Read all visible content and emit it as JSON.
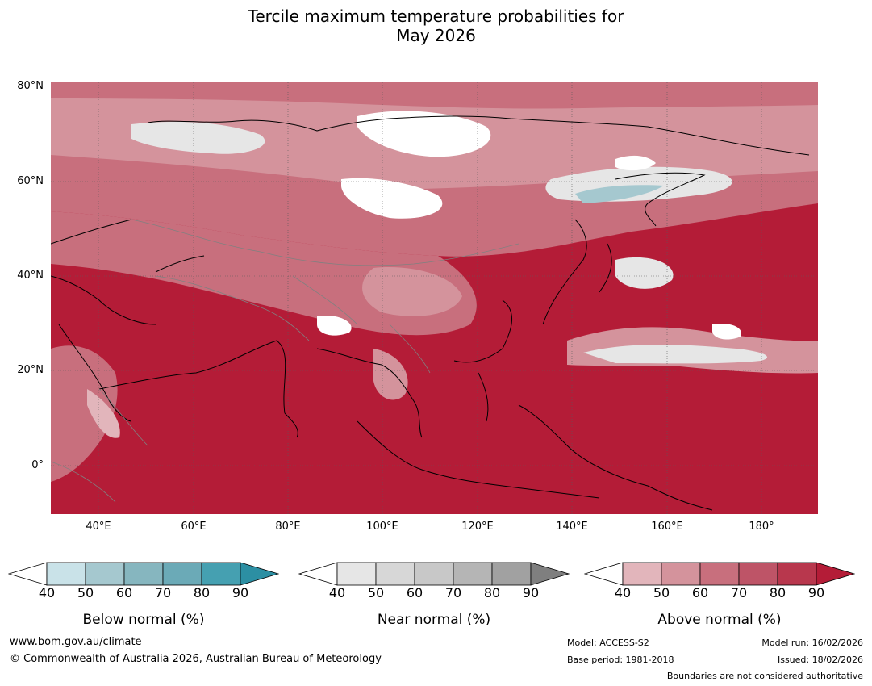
{
  "title_line1": "Tercile maximum temperature probabilities for",
  "title_line2": "May 2026",
  "map": {
    "lat_labels": [
      "80°N",
      "60°N",
      "40°N",
      "20°N",
      "0°"
    ],
    "lon_labels": [
      "40°E",
      "60°E",
      "80°E",
      "100°E",
      "120°E",
      "140°E",
      "160°E",
      "180°"
    ],
    "base_color": "#b41c37",
    "grid_color": "#5a5a5a",
    "coast_color": "#000000",
    "border_color": "#808080"
  },
  "legends": [
    {
      "name": "below",
      "title": "Below normal (%)",
      "ticks": [
        "40",
        "50",
        "60",
        "70",
        "80",
        "90"
      ],
      "colors": [
        "#ffffff",
        "#c9e2e8",
        "#a5c8cf",
        "#86b6bf",
        "#6baab7",
        "#45a0b1",
        "#2c8fa3"
      ]
    },
    {
      "name": "near",
      "title": "Near normal (%)",
      "ticks": [
        "40",
        "50",
        "60",
        "70",
        "80",
        "90"
      ],
      "colors": [
        "#ffffff",
        "#e6e6e6",
        "#d7d7d7",
        "#c8c8c8",
        "#b5b5b5",
        "#a1a1a1",
        "#7f7f7f"
      ]
    },
    {
      "name": "above",
      "title": "Above normal (%)",
      "ticks": [
        "40",
        "50",
        "60",
        "70",
        "80",
        "90"
      ],
      "colors": [
        "#ffffff",
        "#e2b5bb",
        "#d4939c",
        "#c86f7d",
        "#be5467",
        "#b8374d",
        "#b41c37"
      ]
    }
  ],
  "footer": {
    "website": "www.bom.gov.au/climate",
    "copyright": "© Commonwealth of Australia 2026, Australian Bureau of Meteorology",
    "model": "Model: ACCESS-S2",
    "base_period": "Base period: 1981-2018",
    "model_run": "Model run: 16/02/2026",
    "issued": "Issued: 18/02/2026",
    "boundaries": "Boundaries are not considered authoritative"
  }
}
